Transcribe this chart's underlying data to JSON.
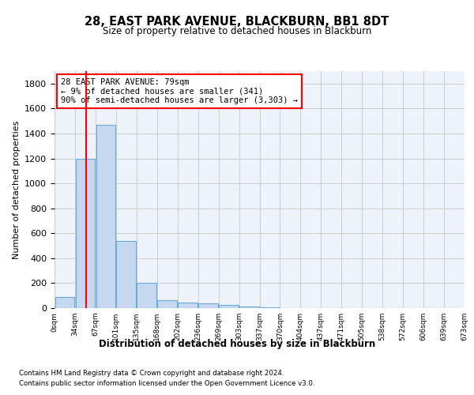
{
  "title": "28, EAST PARK AVENUE, BLACKBURN, BB1 8DT",
  "subtitle": "Size of property relative to detached houses in Blackburn",
  "xlabel": "Distribution of detached houses by size in Blackburn",
  "ylabel": "Number of detached properties",
  "bar_color": "#c5d8f0",
  "bar_edge_color": "#6aaad4",
  "background_color": "#eef2fb",
  "grid_color": "#cccccc",
  "bin_labels": [
    "0sqm",
    "34sqm",
    "67sqm",
    "101sqm",
    "135sqm",
    "168sqm",
    "202sqm",
    "236sqm",
    "269sqm",
    "303sqm",
    "337sqm",
    "370sqm",
    "404sqm",
    "437sqm",
    "471sqm",
    "505sqm",
    "538sqm",
    "572sqm",
    "606sqm",
    "639sqm",
    "673sqm"
  ],
  "bar_heights": [
    90,
    1200,
    1470,
    540,
    205,
    65,
    45,
    35,
    27,
    15,
    8,
    3,
    2,
    1,
    0,
    0,
    0,
    0,
    0,
    0
  ],
  "ylim": [
    0,
    1900
  ],
  "yticks": [
    0,
    200,
    400,
    600,
    800,
    1000,
    1200,
    1400,
    1600,
    1800
  ],
  "annotation_label": "28 EAST PARK AVENUE: 79sqm",
  "annotation_line1": "← 9% of detached houses are smaller (341)",
  "annotation_line2": "90% of semi-detached houses are larger (3,303) →",
  "vline_position": 1.05,
  "footer_line1": "Contains HM Land Registry data © Crown copyright and database right 2024.",
  "footer_line2": "Contains public sector information licensed under the Open Government Licence v3.0."
}
